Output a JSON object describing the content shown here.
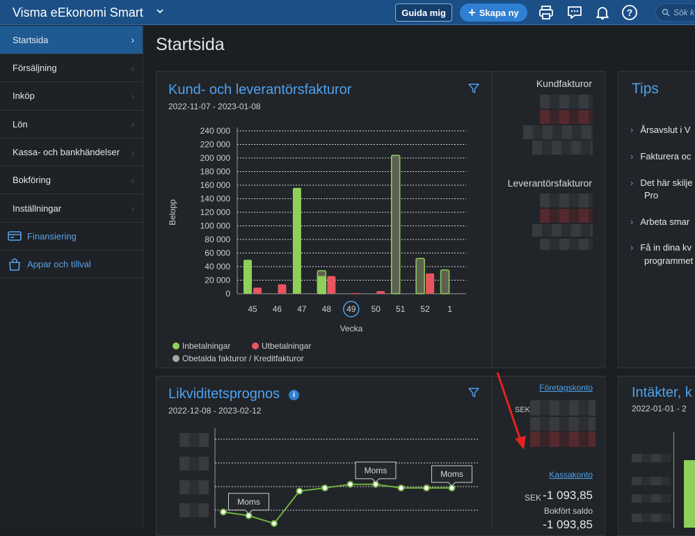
{
  "app": {
    "title": "Visma eEkonomi Smart"
  },
  "topbar": {
    "guide_label": "Guida mig",
    "create_label": "Skapa ny",
    "search_placeholder": "Sök k"
  },
  "sidebar": {
    "items": [
      {
        "label": "Startsida"
      },
      {
        "label": "Försäljning"
      },
      {
        "label": "Inköp"
      },
      {
        "label": "Lön"
      },
      {
        "label": "Kassa- och bankhändelser"
      },
      {
        "label": "Bokföring"
      },
      {
        "label": "Inställningar"
      }
    ],
    "links": [
      {
        "label": "Finansiering",
        "icon": "card-icon"
      },
      {
        "label": "Appar och tillval",
        "icon": "bag-icon"
      }
    ]
  },
  "page": {
    "title": "Startsida"
  },
  "invoices": {
    "title": "Kund- och leverantörsfakturor",
    "date_range": "2022-11-07 - 2023-01-08",
    "customer_label": "Kundfakturor",
    "supplier_label": "Leverantörsfakturor"
  },
  "chart_data": {
    "type": "bar",
    "categories": [
      "45",
      "46",
      "47",
      "48",
      "49",
      "50",
      "51",
      "52",
      "1"
    ],
    "highlighted_category": "49",
    "ylabel": "Belopp",
    "xlabel": "Vecka",
    "ylim": [
      0,
      240000
    ],
    "yticks": [
      "240 000",
      "220 000",
      "200 000",
      "180 000",
      "160 000",
      "140 000",
      "120 000",
      "100 000",
      "80 000",
      "60 000",
      "40 000",
      "20 000",
      "0"
    ],
    "series": [
      {
        "name": "Inbetalningar",
        "color": "#8ed05a",
        "values": [
          50000,
          0,
          156000,
          26000,
          0,
          0,
          0,
          0,
          0
        ]
      },
      {
        "name": "Utbetalningar",
        "color": "#e8555e",
        "values": [
          9000,
          14000,
          0,
          26000,
          1000,
          4000,
          0,
          30000,
          0
        ]
      },
      {
        "name": "Obetalda fakturor / Kreditfakturor",
        "color": "#aaa9a0",
        "values": [
          0,
          0,
          0,
          34000,
          0,
          0,
          204000,
          52000,
          35000
        ]
      }
    ],
    "legend_position": "bottom-left"
  },
  "liquidity": {
    "title": "Likviditetsprognos",
    "date_range": "2022-12-08 - 2023-02-12",
    "company_account_link": "Företagskonto",
    "company_currency": "SEK",
    "cash_account_link": "Kassakonto",
    "cash_currency": "SEK",
    "cash_amount": "-1 093,85",
    "booked_label": "Bokfört saldo",
    "booked_amount": "-1 093,85",
    "line_points": [
      3,
      2.3,
      0.8,
      7,
      7.6,
      8.3,
      8.3,
      7.6,
      7.6,
      7.6
    ],
    "annotations": [
      "Moms",
      "Moms",
      "Moms"
    ]
  },
  "tips": {
    "title": "Tips",
    "items": [
      "Årsavslut i V",
      "Fakturera oc",
      "Det här skilje",
      "Pro",
      "Arbeta smar",
      "Få in dina kv",
      "programmet"
    ]
  },
  "income": {
    "title": "Intäkter, k",
    "date_range": "2022-01-01 - 2"
  }
}
